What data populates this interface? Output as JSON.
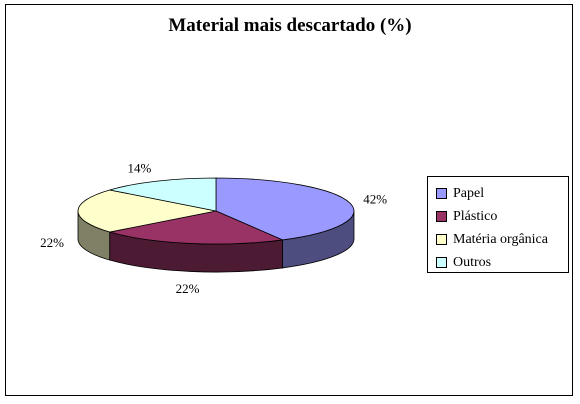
{
  "chart_data": {
    "type": "pie",
    "title": "Material mais descartado (%)",
    "categories": [
      "Papel",
      "Plástico",
      "Matéria orgânica",
      "Outros"
    ],
    "values": [
      42,
      22,
      22,
      14
    ],
    "labels": [
      "42%",
      "22%",
      "22%",
      "14%"
    ],
    "colors": [
      "#9999ff",
      "#993366",
      "#ffffcc",
      "#ccffff"
    ],
    "side_colors": [
      "#4d4d80",
      "#4d1a33",
      "#808066",
      "#668080"
    ],
    "legend_position": "right",
    "three_d": true
  }
}
